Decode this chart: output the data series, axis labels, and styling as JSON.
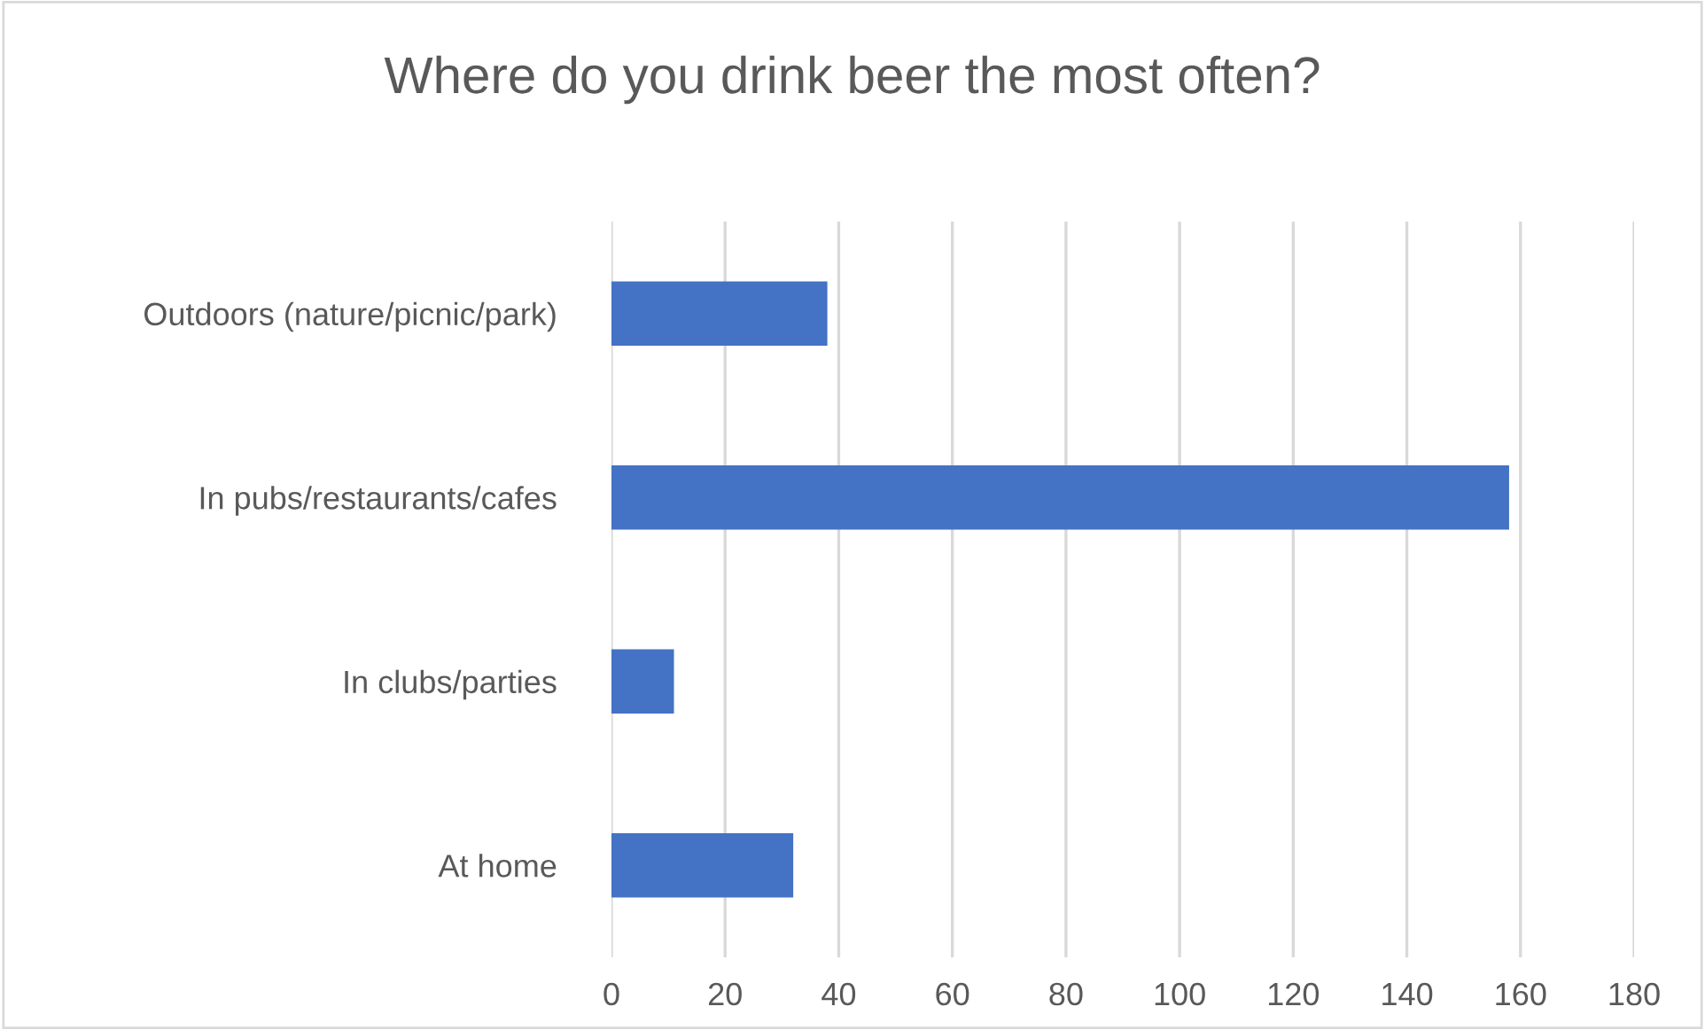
{
  "chart_data": {
    "type": "bar",
    "orientation": "horizontal",
    "title": "Where do you drink beer the most often?",
    "categories": [
      "Outdoors (nature/picnic/park)",
      "In pubs/restaurants/cafes",
      "In clubs/parties",
      "At home"
    ],
    "values": [
      38,
      158,
      11,
      32
    ],
    "color": "#4472c4",
    "xlim": [
      0,
      180
    ],
    "xticks": [
      0,
      20,
      40,
      60,
      80,
      100,
      120,
      140,
      160,
      180
    ],
    "grid": "x",
    "legend": false
  }
}
